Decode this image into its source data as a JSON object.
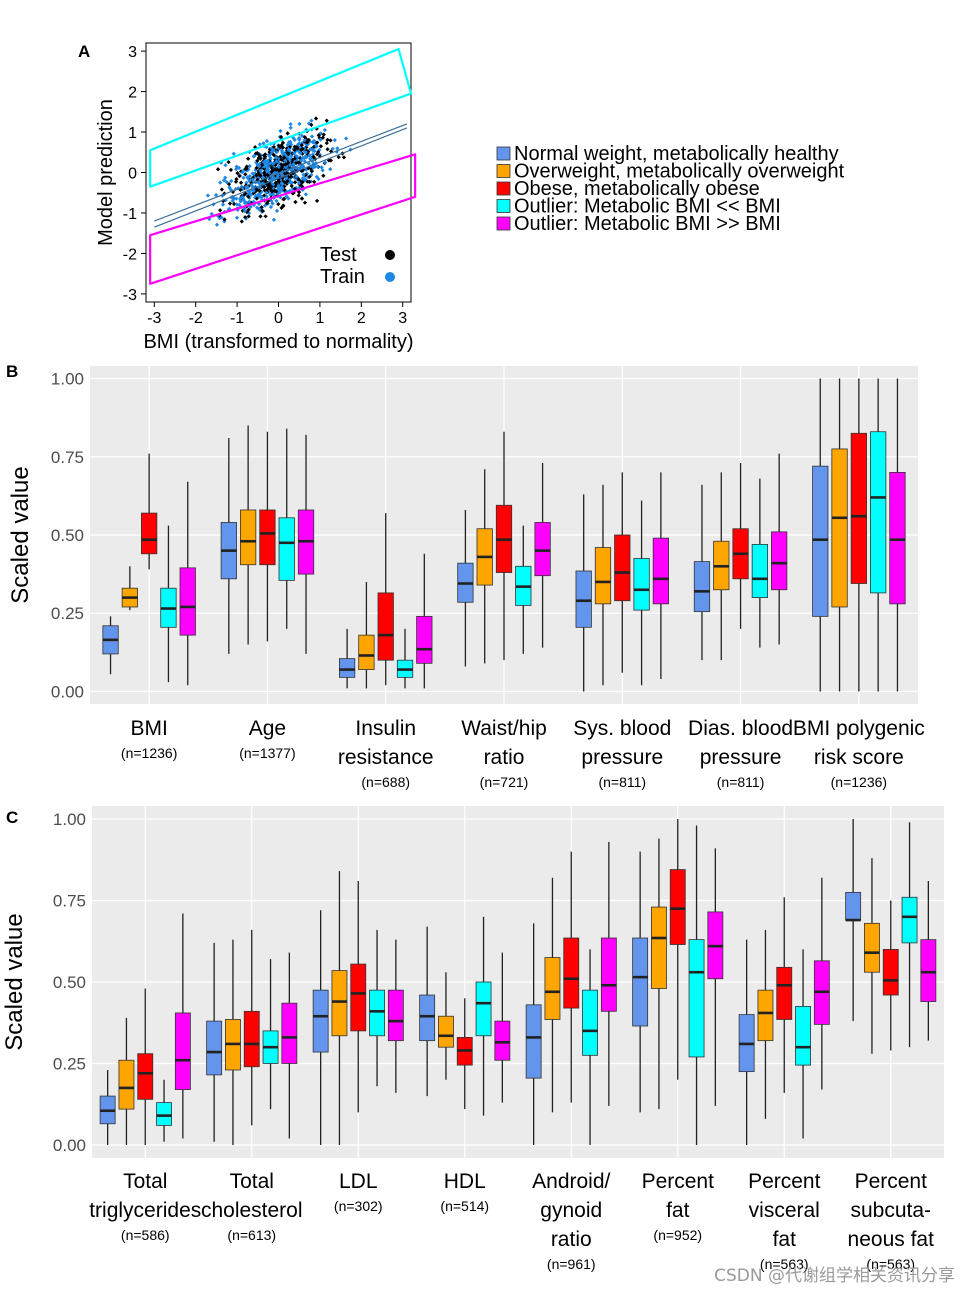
{
  "panel_labels": {
    "a": "A",
    "b": "B",
    "c": "C"
  },
  "watermark": "CSDN @代谢组学相关资讯分享",
  "colors": {
    "normal": "#6495ED",
    "overweight": "#FFA500",
    "obese": "#FF0000",
    "outlier_low": "#00FFFF",
    "outlier_high": "#FF00FF",
    "panel_bg": "#EBEBEB",
    "test_points": "#000000",
    "train_points": "#1E88E5"
  },
  "legend": [
    {
      "label": "Normal weight, metabolically healthy",
      "color_key": "normal"
    },
    {
      "label": "Overweight, metabolically overweight",
      "color_key": "overweight"
    },
    {
      "label": "Obese, metabolically obese",
      "color_key": "obese"
    },
    {
      "label": "Outlier: Metabolic BMI << BMI",
      "color_key": "outlier_low"
    },
    {
      "label": "Outlier: Metabolic BMI >> BMI",
      "color_key": "outlier_high"
    }
  ],
  "chart_data": [
    {
      "id": "A",
      "type": "scatter",
      "xlabel": "BMI (transformed to normality)",
      "ylabel": "Model prediction",
      "xlim": [
        -3.2,
        3.2
      ],
      "ylim": [
        -3.2,
        3.2
      ],
      "xticks": [
        "-3",
        "-2",
        "-1",
        "0",
        "1",
        "2",
        "3"
      ],
      "yticks": [
        "-3",
        "-2",
        "-1",
        "0",
        "1",
        "2",
        "3"
      ],
      "series": [
        {
          "name": "Test",
          "color_key": "test_points"
        },
        {
          "name": "Train",
          "color_key": "train_points"
        }
      ],
      "point_cloud": {
        "description_x_range": [
          -2.6,
          3.0
        ],
        "slope": 0.45,
        "spread": 0.6
      },
      "regression_lines": [
        {
          "x": [
            -3.0,
            3.1
          ],
          "y": [
            -1.2,
            1.2
          ]
        },
        {
          "x": [
            -3.0,
            3.1
          ],
          "y": [
            -1.35,
            1.1
          ]
        }
      ],
      "outlier_bands": [
        {
          "color_key": "outlier_low",
          "corners": [
            [
              -3.1,
              0.55
            ],
            [
              2.9,
              3.05
            ],
            [
              3.2,
              1.95
            ],
            [
              -3.1,
              -0.35
            ]
          ]
        },
        {
          "color_key": "outlier_high",
          "corners": [
            [
              -3.1,
              -1.55
            ],
            [
              3.3,
              0.45
            ],
            [
              3.3,
              -0.6
            ],
            [
              -3.1,
              -2.75
            ]
          ]
        }
      ]
    },
    {
      "id": "B",
      "type": "boxplot",
      "ylabel": "Scaled value",
      "ylim": [
        -0.04,
        1.04
      ],
      "yticks": [
        "0.00",
        "0.25",
        "0.50",
        "0.75",
        "1.00"
      ],
      "categories": [
        {
          "label": [
            "BMI"
          ],
          "n": "(n=1236)",
          "boxes": [
            [
              0.055,
              0.12,
              0.165,
              0.21,
              0.24
            ],
            [
              0.26,
              0.27,
              0.3,
              0.33,
              0.4
            ],
            [
              0.39,
              0.44,
              0.485,
              0.57,
              0.76
            ],
            [
              0.03,
              0.205,
              0.265,
              0.33,
              0.53
            ],
            [
              0.02,
              0.18,
              0.27,
              0.395,
              0.67
            ]
          ]
        },
        {
          "label": [
            "Age"
          ],
          "n": "(n=1377)",
          "boxes": [
            [
              0.12,
              0.36,
              0.45,
              0.54,
              0.81
            ],
            [
              0.15,
              0.405,
              0.48,
              0.58,
              0.85
            ],
            [
              0.16,
              0.405,
              0.505,
              0.58,
              0.83
            ],
            [
              0.2,
              0.355,
              0.475,
              0.555,
              0.84
            ],
            [
              0.12,
              0.375,
              0.48,
              0.58,
              0.82
            ]
          ]
        },
        {
          "label": [
            "Insulin",
            "resistance"
          ],
          "n": "(n=688)",
          "boxes": [
            [
              0.01,
              0.045,
              0.07,
              0.105,
              0.2
            ],
            [
              0.01,
              0.07,
              0.115,
              0.18,
              0.35
            ],
            [
              0.02,
              0.1,
              0.18,
              0.315,
              0.57
            ],
            [
              0.01,
              0.045,
              0.07,
              0.1,
              0.2
            ],
            [
              0.01,
              0.09,
              0.135,
              0.24,
              0.44
            ]
          ]
        },
        {
          "label": [
            "Waist/hip",
            "ratio"
          ],
          "n": "(n=721)",
          "boxes": [
            [
              0.08,
              0.285,
              0.345,
              0.41,
              0.58
            ],
            [
              0.09,
              0.34,
              0.43,
              0.52,
              0.71
            ],
            [
              0.1,
              0.38,
              0.485,
              0.595,
              0.83
            ],
            [
              0.12,
              0.275,
              0.335,
              0.4,
              0.53
            ],
            [
              0.14,
              0.37,
              0.45,
              0.54,
              0.73
            ]
          ]
        },
        {
          "label": [
            "Sys. blood",
            "pressure"
          ],
          "n": "(n=811)",
          "boxes": [
            [
              0.0,
              0.205,
              0.29,
              0.385,
              0.63
            ],
            [
              0.02,
              0.28,
              0.35,
              0.46,
              0.66
            ],
            [
              0.06,
              0.29,
              0.38,
              0.5,
              0.7
            ],
            [
              0.02,
              0.26,
              0.325,
              0.425,
              0.61
            ],
            [
              0.04,
              0.28,
              0.36,
              0.49,
              0.7
            ]
          ]
        },
        {
          "label": [
            "Dias. blood",
            "pressure"
          ],
          "n": "(n=811)",
          "boxes": [
            [
              0.1,
              0.255,
              0.32,
              0.415,
              0.66
            ],
            [
              0.1,
              0.325,
              0.4,
              0.48,
              0.7
            ],
            [
              0.2,
              0.36,
              0.44,
              0.52,
              0.73
            ],
            [
              0.14,
              0.3,
              0.36,
              0.47,
              0.68
            ],
            [
              0.15,
              0.325,
              0.41,
              0.51,
              0.76
            ]
          ]
        },
        {
          "label": [
            "BMI polygenic",
            "risk score"
          ],
          "n": "(n=1236)",
          "boxes": [
            [
              0.0,
              0.24,
              0.485,
              0.72,
              1.0
            ],
            [
              0.0,
              0.27,
              0.555,
              0.775,
              1.0
            ],
            [
              0.0,
              0.345,
              0.56,
              0.825,
              1.0
            ],
            [
              0.0,
              0.315,
              0.62,
              0.83,
              1.0
            ],
            [
              0.0,
              0.28,
              0.485,
              0.7,
              1.0
            ]
          ]
        }
      ]
    },
    {
      "id": "C",
      "type": "boxplot",
      "ylabel": "Scaled value",
      "ylim": [
        -0.04,
        1.04
      ],
      "yticks": [
        "0.00",
        "0.25",
        "0.50",
        "0.75",
        "1.00"
      ],
      "categories": [
        {
          "label": [
            "Total",
            "triglycerides"
          ],
          "n": "(n=586)",
          "boxes": [
            [
              0.0,
              0.065,
              0.105,
              0.15,
              0.23
            ],
            [
              0.0,
              0.11,
              0.175,
              0.26,
              0.39
            ],
            [
              0.0,
              0.14,
              0.22,
              0.28,
              0.48
            ],
            [
              0.01,
              0.06,
              0.09,
              0.13,
              0.2
            ],
            [
              0.02,
              0.17,
              0.26,
              0.405,
              0.71
            ]
          ]
        },
        {
          "label": [
            "Total",
            "cholesterol"
          ],
          "n": "(n=613)",
          "boxes": [
            [
              0.01,
              0.215,
              0.285,
              0.38,
              0.62
            ],
            [
              0.0,
              0.23,
              0.31,
              0.385,
              0.63
            ],
            [
              0.06,
              0.24,
              0.31,
              0.41,
              0.66
            ],
            [
              0.11,
              0.25,
              0.3,
              0.35,
              0.57
            ],
            [
              0.02,
              0.25,
              0.33,
              0.435,
              0.59
            ]
          ]
        },
        {
          "label": [
            "LDL"
          ],
          "n": "(n=302)",
          "boxes": [
            [
              0.0,
              0.285,
              0.395,
              0.475,
              0.72
            ],
            [
              0.0,
              0.335,
              0.44,
              0.535,
              0.84
            ],
            [
              0.1,
              0.35,
              0.465,
              0.555,
              0.81
            ],
            [
              0.18,
              0.335,
              0.41,
              0.475,
              0.66
            ],
            [
              0.16,
              0.32,
              0.38,
              0.475,
              0.63
            ]
          ]
        },
        {
          "label": [
            "HDL"
          ],
          "n": "(n=514)",
          "boxes": [
            [
              0.15,
              0.32,
              0.395,
              0.46,
              0.67
            ],
            [
              0.2,
              0.3,
              0.335,
              0.395,
              0.53
            ],
            [
              0.11,
              0.245,
              0.29,
              0.33,
              0.45
            ],
            [
              0.09,
              0.335,
              0.435,
              0.5,
              0.7
            ],
            [
              0.13,
              0.26,
              0.315,
              0.38,
              0.59
            ]
          ]
        },
        {
          "label": [
            "Android/",
            "gynoid",
            "ratio"
          ],
          "n": "(n=961)",
          "boxes": [
            [
              0.0,
              0.205,
              0.33,
              0.43,
              0.68
            ],
            [
              0.1,
              0.385,
              0.47,
              0.575,
              0.82
            ],
            [
              0.13,
              0.42,
              0.51,
              0.635,
              0.9
            ],
            [
              0.0,
              0.275,
              0.35,
              0.475,
              0.6
            ],
            [
              0.12,
              0.41,
              0.49,
              0.635,
              0.93
            ]
          ]
        },
        {
          "label": [
            "Percent",
            "fat"
          ],
          "n": "(n=952)",
          "boxes": [
            [
              0.1,
              0.365,
              0.515,
              0.635,
              0.9
            ],
            [
              0.11,
              0.48,
              0.635,
              0.73,
              0.94
            ],
            [
              0.2,
              0.615,
              0.725,
              0.845,
              1.0
            ],
            [
              0.0,
              0.27,
              0.53,
              0.63,
              0.98
            ],
            [
              0.12,
              0.51,
              0.61,
              0.715,
              0.91
            ]
          ]
        },
        {
          "label": [
            "Percent",
            "visceral",
            "fat"
          ],
          "n": "(n=563)",
          "boxes": [
            [
              0.0,
              0.225,
              0.31,
              0.4,
              0.63
            ],
            [
              0.08,
              0.32,
              0.405,
              0.475,
              0.66
            ],
            [
              0.16,
              0.385,
              0.49,
              0.545,
              0.76
            ],
            [
              0.02,
              0.245,
              0.3,
              0.425,
              0.6
            ],
            [
              0.17,
              0.37,
              0.47,
              0.565,
              0.82
            ]
          ]
        },
        {
          "label": [
            "Percent",
            "subcuta-",
            "neous fat"
          ],
          "n": "(n=563)",
          "boxes": [
            [
              0.38,
              0.69,
              0.69,
              0.775,
              1.0
            ],
            [
              0.28,
              0.53,
              0.59,
              0.68,
              0.88
            ],
            [
              0.29,
              0.46,
              0.505,
              0.6,
              0.75
            ],
            [
              0.3,
              0.62,
              0.7,
              0.76,
              0.99
            ],
            [
              0.32,
              0.44,
              0.53,
              0.63,
              0.81
            ]
          ]
        }
      ]
    }
  ]
}
